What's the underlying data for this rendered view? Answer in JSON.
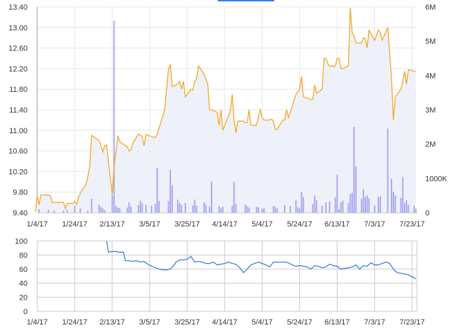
{
  "colors": {
    "price_line": "#f5a623",
    "price_fill": "#eef1f9",
    "volume_bar": "#a9a9ef",
    "indicator_line": "#3b7fd4",
    "grid": "#e6e6e6",
    "lower_grid": "#c8c8c8",
    "axis": "#999999",
    "accent_top": "#2f80ed"
  },
  "chart_data": [
    {
      "type": "line",
      "x_tick_labels": [
        "1/4/17",
        "1/24/17",
        "2/13/17",
        "3/5/17",
        "3/25/17",
        "4/14/17",
        "5/4/17",
        "5/24/17",
        "6/13/17",
        "7/3/17",
        "7/23/17"
      ],
      "y_tick_labels": [
        "9.40",
        "9.80",
        "10.20",
        "10.60",
        "11.00",
        "11.40",
        "11.80",
        "12.20",
        "12.60",
        "13.00",
        "13.40"
      ],
      "ylim": [
        9.4,
        13.4
      ],
      "grid": true,
      "series": [
        {
          "kind": "price",
          "x": [
            "1/3/17",
            "1/4/17",
            "1/5/17",
            "1/6/17",
            "1/9/17",
            "1/10/17",
            "1/11/17",
            "1/12/17",
            "1/13/17",
            "1/17/17",
            "1/18/17",
            "1/19/17",
            "1/20/17",
            "1/23/17",
            "1/24/17",
            "1/25/17",
            "1/26/17",
            "1/27/17",
            "1/30/17",
            "1/31/17",
            "2/1/17",
            "2/2/17",
            "2/3/17",
            "2/6/17",
            "2/7/17",
            "2/8/17",
            "2/9/17",
            "2/10/17",
            "2/13/17",
            "2/14/17",
            "2/15/17",
            "2/16/17",
            "2/17/17",
            "2/21/17",
            "2/22/17",
            "2/23/17",
            "2/24/17",
            "2/27/17",
            "2/28/17",
            "3/1/17",
            "3/2/17",
            "3/3/17",
            "3/6/17",
            "3/7/17",
            "3/8/17",
            "3/9/17",
            "3/10/17",
            "3/13/17",
            "3/14/17",
            "3/15/17",
            "3/16/17",
            "3/17/17",
            "3/20/17",
            "3/21/17",
            "3/22/17",
            "3/23/17",
            "3/24/17",
            "3/27/17",
            "3/28/17",
            "3/29/17",
            "3/30/17",
            "3/31/17",
            "4/3/17",
            "4/4/17",
            "4/5/17",
            "4/6/17",
            "4/7/17",
            "4/10/17",
            "4/11/17",
            "4/12/17",
            "4/13/17",
            "4/17/17",
            "4/18/17",
            "4/19/17",
            "4/20/17",
            "4/21/17",
            "4/24/17",
            "4/25/17",
            "4/26/17",
            "4/27/17",
            "4/28/17",
            "5/1/17",
            "5/2/17",
            "5/3/17",
            "5/4/17",
            "5/5/17",
            "5/8/17",
            "5/9/17",
            "5/10/17",
            "5/11/17",
            "5/12/17",
            "5/15/17",
            "5/16/17",
            "5/17/17",
            "5/18/17",
            "5/19/17",
            "5/22/17",
            "5/23/17",
            "5/24/17",
            "5/25/17",
            "5/26/17",
            "5/30/17",
            "5/31/17",
            "6/1/17",
            "6/2/17",
            "6/5/17",
            "6/6/17",
            "6/7/17",
            "6/8/17",
            "6/9/17",
            "6/12/17",
            "6/13/17",
            "6/14/17",
            "6/15/17",
            "6/16/17",
            "6/19/17",
            "6/20/17",
            "6/21/17",
            "6/22/17",
            "6/23/17",
            "6/26/17",
            "6/27/17",
            "6/28/17",
            "6/29/17",
            "6/30/17",
            "7/3/17",
            "7/5/17",
            "7/6/17",
            "7/7/17",
            "7/10/17",
            "7/11/17",
            "7/12/17",
            "7/13/17",
            "7/14/17",
            "7/17/17",
            "7/18/17",
            "7/19/17",
            "7/20/17",
            "7/21/17",
            "7/24/17",
            "7/25/17"
          ],
          "values": [
            9.42,
            9.72,
            9.55,
            9.75,
            9.74,
            9.74,
            9.73,
            9.6,
            9.6,
            9.6,
            9.6,
            9.48,
            9.58,
            9.58,
            9.62,
            9.56,
            9.7,
            9.78,
            9.95,
            10.1,
            10.3,
            10.9,
            10.88,
            10.8,
            10.7,
            10.58,
            10.7,
            10.72,
            9.75,
            10.3,
            10.58,
            10.9,
            10.78,
            10.68,
            10.6,
            10.62,
            10.75,
            10.93,
            10.91,
            10.88,
            10.7,
            10.92,
            10.88,
            10.87,
            10.86,
            10.92,
            11.05,
            11.4,
            11.8,
            12.18,
            12.28,
            11.85,
            11.9,
            11.95,
            11.8,
            11.95,
            11.65,
            11.8,
            11.78,
            11.95,
            12.0,
            12.25,
            12.1,
            12.0,
            11.9,
            11.4,
            11.4,
            11.35,
            11.1,
            11.4,
            11.0,
            11.38,
            11.7,
            11.2,
            10.95,
            11.18,
            11.18,
            11.15,
            11.15,
            11.4,
            11.1,
            11.1,
            11.28,
            11.4,
            11.25,
            11.2,
            11.2,
            11.22,
            11.18,
            11.02,
            11.02,
            11.2,
            11.2,
            11.4,
            11.25,
            11.35,
            11.7,
            11.75,
            11.8,
            12.05,
            11.65,
            11.6,
            11.6,
            11.88,
            11.72,
            11.8,
            12.4,
            12.4,
            12.3,
            12.25,
            12.25,
            12.4,
            12.4,
            12.2,
            12.2,
            12.25,
            13.38,
            12.9,
            12.85,
            12.7,
            12.7,
            12.8,
            12.78,
            12.6,
            12.95,
            12.75,
            12.95,
            12.9,
            12.75,
            13.0,
            12.5,
            12.0,
            11.2,
            11.65,
            11.8,
            11.95,
            12.15,
            11.9,
            12.18,
            12.15,
            12.15
          ]
        },
        {
          "kind": "volume",
          "y2_tick_labels": [
            "0",
            "1000K",
            "2M",
            "3M",
            "4M",
            "5M",
            "6M"
          ],
          "y2lim": [
            0,
            6000000
          ],
          "x": [
            "1/5/17",
            "1/10/17",
            "1/13/17",
            "1/18/17",
            "1/20/17",
            "1/24/17",
            "1/27/17",
            "1/31/17",
            "2/2/17",
            "2/6/17",
            "2/7/17",
            "2/8/17",
            "2/9/17",
            "2/13/17",
            "2/14/17",
            "2/15/17",
            "2/16/17",
            "2/17/17",
            "2/21/17",
            "2/22/17",
            "2/23/17",
            "2/27/17",
            "2/28/17",
            "3/1/17",
            "3/3/17",
            "3/6/17",
            "3/8/17",
            "3/9/17",
            "3/10/17",
            "3/15/17",
            "3/16/17",
            "3/17/17",
            "3/20/17",
            "3/21/17",
            "3/22/17",
            "3/24/17",
            "3/28/17",
            "3/29/17",
            "3/30/17",
            "4/3/17",
            "4/4/17",
            "4/6/17",
            "4/7/17",
            "4/11/17",
            "4/12/17",
            "4/13/17",
            "4/18/17",
            "4/19/17",
            "4/20/17",
            "4/25/17",
            "4/26/17",
            "4/27/17",
            "5/1/17",
            "5/2/17",
            "5/4/17",
            "5/5/17",
            "5/10/17",
            "5/11/17",
            "5/12/17",
            "5/16/17",
            "5/19/17",
            "5/22/17",
            "5/23/17",
            "5/24/17",
            "5/25/17",
            "5/26/17",
            "5/31/17",
            "6/1/17",
            "6/2/17",
            "6/5/17",
            "6/7/17",
            "6/9/17",
            "6/12/17",
            "6/13/17",
            "6/14/17",
            "6/15/17",
            "6/16/17",
            "6/19/17",
            "6/20/17",
            "6/21/17",
            "6/22/17",
            "6/23/17",
            "6/26/17",
            "6/27/17",
            "6/28/17",
            "6/29/17",
            "6/30/17",
            "7/3/17",
            "7/5/17",
            "7/6/17",
            "7/10/17",
            "7/12/17",
            "7/13/17",
            "7/14/17",
            "7/17/17",
            "7/18/17",
            "7/19/17",
            "7/20/17",
            "7/21/17",
            "7/24/17",
            "7/25/17"
          ],
          "values": [
            100000,
            80000,
            60000,
            60000,
            80000,
            200000,
            120000,
            60000,
            400000,
            230000,
            170000,
            120000,
            70000,
            500000,
            5600000,
            200000,
            150000,
            130000,
            150000,
            300000,
            180000,
            220000,
            350000,
            270000,
            220000,
            200000,
            260000,
            1300000,
            340000,
            340000,
            1250000,
            800000,
            380000,
            280000,
            220000,
            280000,
            210000,
            380000,
            200000,
            300000,
            230000,
            180000,
            900000,
            190000,
            140000,
            170000,
            200000,
            900000,
            250000,
            230000,
            190000,
            150000,
            170000,
            160000,
            120000,
            130000,
            200000,
            170000,
            130000,
            220000,
            200000,
            360000,
            160000,
            120000,
            610000,
            460000,
            250000,
            500000,
            360000,
            200000,
            300000,
            330000,
            450000,
            1100000,
            100000,
            300000,
            350000,
            280000,
            550000,
            580000,
            2500000,
            1350000,
            400000,
            680000,
            460000,
            500000,
            420000,
            210000,
            450000,
            480000,
            2450000,
            990000,
            610000,
            500000,
            430000,
            1040000,
            280000,
            360000,
            230000,
            200000,
            120000
          ]
        }
      ]
    },
    {
      "type": "line",
      "x_tick_labels": [
        "1/4/17",
        "1/24/17",
        "2/13/17",
        "3/5/17",
        "3/25/17",
        "4/14/17",
        "5/4/17",
        "5/24/17",
        "6/13/17",
        "7/3/17",
        "7/23/17"
      ],
      "y_tick_labels": [
        "0",
        "20",
        "40",
        "60",
        "80",
        "100"
      ],
      "ylim": [
        0,
        100
      ],
      "grid": true,
      "series": [
        {
          "kind": "indicator",
          "x": [
            "2/10/17",
            "2/11/17",
            "2/13/17",
            "2/15/17",
            "2/17/17",
            "2/19/17",
            "2/20/17",
            "2/22/17",
            "2/24/17",
            "2/26/17",
            "2/28/17",
            "3/2/17",
            "3/4/17",
            "3/6/17",
            "3/8/17",
            "3/10/17",
            "3/12/17",
            "3/14/17",
            "3/16/17",
            "3/18/17",
            "3/19/17",
            "3/21/17",
            "3/23/17",
            "3/25/17",
            "3/27/17",
            "3/29/17",
            "3/31/17",
            "4/2/17",
            "4/4/17",
            "4/6/17",
            "4/8/17",
            "4/10/17",
            "4/12/17",
            "4/14/17",
            "4/16/17",
            "4/18/17",
            "4/20/17",
            "4/22/17",
            "4/24/17",
            "4/26/17",
            "4/28/17",
            "4/30/17",
            "5/2/17",
            "5/4/17",
            "5/6/17",
            "5/8/17",
            "5/10/17",
            "5/12/17",
            "5/14/17",
            "5/16/17",
            "5/18/17",
            "5/20/17",
            "5/22/17",
            "5/24/17",
            "5/26/17",
            "5/28/17",
            "5/30/17",
            "6/1/17",
            "6/3/17",
            "6/5/17",
            "6/7/17",
            "6/9/17",
            "6/11/17",
            "6/13/17",
            "6/15/17",
            "6/17/17",
            "6/19/17",
            "6/21/17",
            "6/23/17",
            "6/25/17",
            "6/27/17",
            "6/29/17",
            "7/1/17",
            "7/3/17",
            "7/5/17",
            "7/7/17",
            "7/9/17",
            "7/11/17",
            "7/13/17",
            "7/15/17",
            "7/17/17",
            "7/19/17",
            "7/21/17",
            "7/23/17",
            "7/25/17"
          ],
          "values": [
            100,
            84,
            85,
            85,
            84,
            84,
            72,
            72,
            71,
            72,
            70,
            71,
            67,
            64,
            62,
            60,
            59,
            59,
            60,
            66,
            70,
            73,
            73,
            74,
            78,
            70,
            71,
            70,
            68,
            68,
            70,
            66,
            67,
            68,
            70,
            68,
            67,
            62,
            55,
            60,
            66,
            68,
            70,
            68,
            66,
            63,
            70,
            70,
            70,
            70,
            69,
            66,
            64,
            65,
            64,
            63,
            60,
            65,
            64,
            62,
            63,
            67,
            65,
            64,
            60,
            61,
            62,
            63,
            66,
            60,
            65,
            64,
            69,
            66,
            66,
            68,
            70,
            68,
            60,
            55,
            54,
            53,
            52,
            49,
            46
          ]
        }
      ]
    }
  ]
}
